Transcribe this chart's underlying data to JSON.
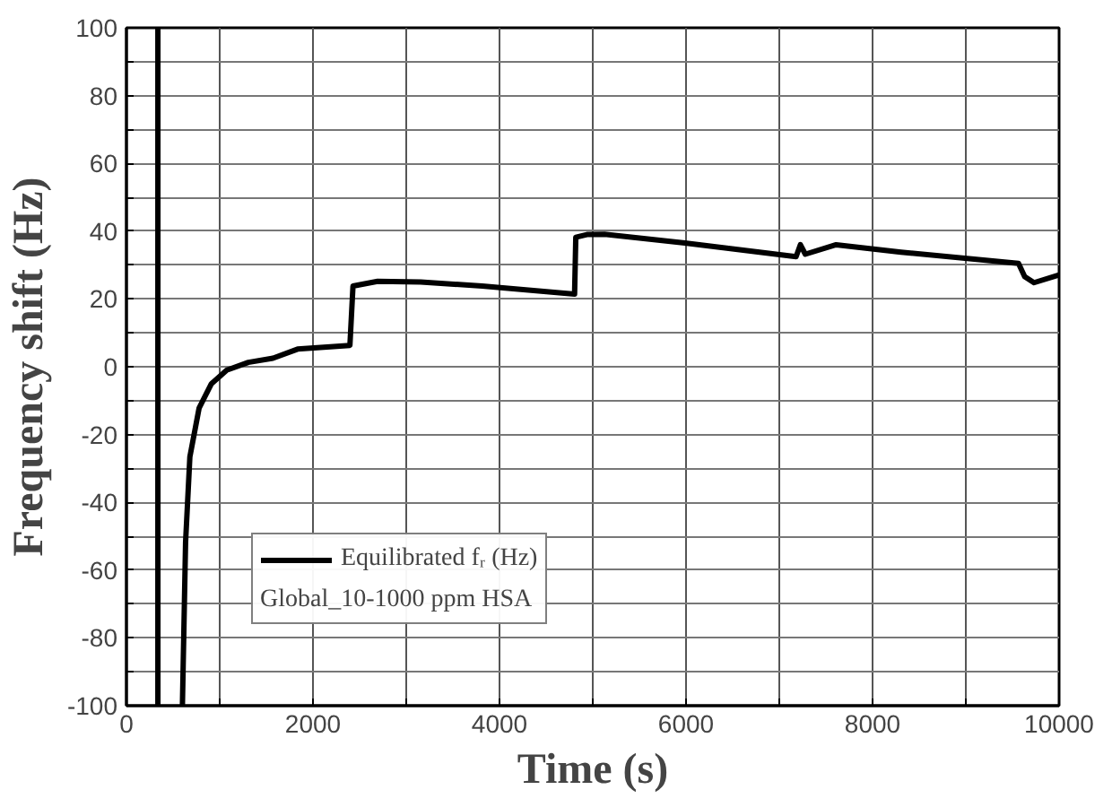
{
  "chart_data": {
    "type": "line",
    "xlabel": "Time (s)",
    "ylabel": "Frequency shift (Hz)",
    "xlim": [
      0,
      10000
    ],
    "ylim": [
      -100,
      100
    ],
    "xticks": [
      0,
      {
        "value": 1000,
        "label": null
      },
      2000,
      {
        "value": 3000,
        "label": null
      },
      4000,
      {
        "value": 5000,
        "label": null
      },
      6000,
      {
        "value": 7000,
        "label": null
      },
      8000,
      {
        "value": 9000,
        "label": null
      },
      10000
    ],
    "yticks": [
      -100,
      {
        "value": -90,
        "label": null
      },
      -80,
      {
        "value": -70,
        "label": null
      },
      -60,
      {
        "value": -50,
        "label": null
      },
      -40,
      {
        "value": -30,
        "label": null
      },
      -20,
      {
        "value": -10,
        "label": null
      },
      0,
      {
        "value": 10,
        "label": null
      },
      20,
      {
        "value": 30,
        "label": null
      },
      40,
      {
        "value": 50,
        "label": null
      },
      60,
      {
        "value": 70,
        "label": null
      },
      80,
      {
        "value": 90,
        "label": null
      },
      100
    ],
    "grid": true,
    "legend": "bottom left",
    "legend_title": "Global_10-1000 ppm HSA",
    "marker": "none",
    "line_style": "solid",
    "series": [
      {
        "color": "#000000",
        "x": [
          337,
          337
        ],
        "values": [
          100,
          -100
        ]
      },
      {
        "name": "Equilibrated fᵣ (Hz)",
        "color": "#000000",
        "x": [
          600,
          634,
          680,
          779,
          911,
          1076,
          1307,
          1571,
          1835,
          2396,
          2429,
          2693,
          3155,
          3815,
          4805,
          4818,
          4937,
          5126,
          5987,
          7180,
          7226,
          7279,
          7610,
          8306,
          9565,
          9631,
          9731,
          10000
        ],
        "values": [
          -100,
          -51.8,
          -26.6,
          -12.2,
          -5,
          -1,
          1.3,
          2.5,
          5.2,
          6.3,
          23.8,
          25.2,
          25,
          23.8,
          21.4,
          38.2,
          39,
          39.1,
          36.5,
          32.5,
          36,
          33.2,
          36,
          33.8,
          30.5,
          26.6,
          24.8,
          27.1
        ]
      }
    ]
  }
}
